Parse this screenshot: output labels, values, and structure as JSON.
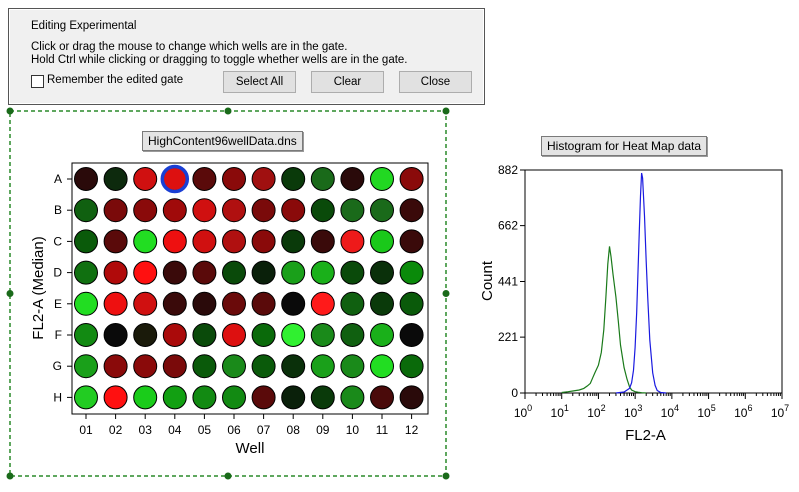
{
  "editing_panel": {
    "title": "Editing Experimental",
    "instruction_1": "Click or drag the mouse to change which wells are in the gate.",
    "instruction_2": "Hold Ctrl while clicking or dragging to toggle whether wells are in the gate.",
    "remember_label": "Remember the edited gate",
    "remember_checked": false,
    "select_all_label": "Select All",
    "clear_label": "Clear",
    "close_label": "Close"
  },
  "heatmap": {
    "title": "HighContent96wellData.dns",
    "row_labels": [
      "A",
      "B",
      "C",
      "D",
      "E",
      "F",
      "G",
      "H"
    ],
    "col_labels": [
      "01",
      "02",
      "03",
      "04",
      "05",
      "06",
      "07",
      "08",
      "09",
      "10",
      "11",
      "12"
    ],
    "xlabel": "Well",
    "ylabel": "FL2-A (Median)",
    "selected_well": "A04",
    "selection_color": "#1a3fd4",
    "well_colors": [
      [
        "#2a0a0a",
        "#0d2a0d",
        "#d01010",
        "#dd1010",
        "#5a0a0a",
        "#8a0a0a",
        "#a01010",
        "#0a3a0a",
        "#1a6a1a",
        "#2a0a0a",
        "#22d822",
        "#8a0a0a"
      ],
      [
        "#106010",
        "#7a0a0a",
        "#8a0a0a",
        "#a00a0a",
        "#d01010",
        "#b01010",
        "#7a0a0a",
        "#8a0a0a",
        "#0a4a0a",
        "#1a6a1a",
        "#1a6a1a",
        "#3a0a0a"
      ],
      [
        "#0a5a0a",
        "#5a0a0a",
        "#22dd22",
        "#ee1010",
        "#d01010",
        "#b01010",
        "#8a0a0a",
        "#0a3a0a",
        "#3a0a0a",
        "#ee1a1a",
        "#1ac81a",
        "#3a0a0a"
      ],
      [
        "#107010",
        "#b00a0a",
        "#ff1010",
        "#3a0a0a",
        "#5a0a0a",
        "#0a4a0a",
        "#0a200a",
        "#1aa01a",
        "#1ab01a",
        "#0a4a0a",
        "#0a300a",
        "#0a8a0a"
      ],
      [
        "#22dd22",
        "#ee1010",
        "#d01010",
        "#3a0a0a",
        "#2a0a0a",
        "#6a0a0a",
        "#5a0a0a",
        "#0a0a0a",
        "#ff1a1a",
        "#106010",
        "#0a3a0a",
        "#0a5a0a"
      ],
      [
        "#128a12",
        "#0a0a0a",
        "#1a1a0a",
        "#aa0a0a",
        "#0a4a0a",
        "#dd1010",
        "#0a6a0a",
        "#30f030",
        "#1a8a1a",
        "#106010",
        "#1ab01a",
        "#0a0a0a"
      ],
      [
        "#1aa01a",
        "#8a0a0a",
        "#8a0a0a",
        "#7a0a0a",
        "#0a5a0a",
        "#1a8a1a",
        "#0a5a0a",
        "#0a300a",
        "#1aa01a",
        "#1a8a1a",
        "#22dd22",
        "#0a6a0a"
      ],
      [
        "#22cc22",
        "#ff1010",
        "#1acc1a",
        "#12a012",
        "#128a12",
        "#128a12",
        "#5a0a0a",
        "#0a200a",
        "#0a3a0a",
        "#1a8a1a",
        "#4a0a0a",
        "#2a0a0a"
      ]
    ]
  },
  "chart_data": {
    "type": "line",
    "title": "Histogram for Heat Map data",
    "xlabel": "FL2-A",
    "ylabel": "Count",
    "x_scale": "log",
    "xlim": [
      1,
      10000000
    ],
    "ylim": [
      0,
      882
    ],
    "x_tick_labels": [
      "10^0",
      "10^1",
      "10^2",
      "10^3",
      "10^4",
      "10^5",
      "10^6",
      "10^7"
    ],
    "y_tick_labels": [
      "0",
      "221",
      "441",
      "662",
      "882"
    ],
    "series": [
      {
        "color": "#1a7a1a",
        "x": [
          10,
          15,
          20,
          30,
          40,
          50,
          60,
          70,
          80,
          100,
          120,
          140,
          160,
          180,
          200,
          220,
          250,
          300,
          350,
          400,
          500,
          600,
          700,
          800,
          1000,
          1200,
          1500,
          2000
        ],
        "y": [
          2,
          5,
          8,
          12,
          18,
          28,
          38,
          60,
          80,
          110,
          160,
          250,
          380,
          510,
          580,
          540,
          470,
          380,
          280,
          190,
          100,
          55,
          25,
          12,
          5,
          3,
          1,
          0
        ]
      },
      {
        "color": "#1a1ae0",
        "x": [
          300,
          500,
          700,
          800,
          900,
          1000,
          1100,
          1200,
          1300,
          1400,
          1500,
          1600,
          1800,
          2000,
          2200,
          2500,
          3000,
          3500,
          4000,
          5000,
          7000
        ],
        "y": [
          0,
          4,
          18,
          40,
          90,
          180,
          320,
          480,
          640,
          780,
          870,
          850,
          700,
          520,
          380,
          210,
          80,
          30,
          10,
          2,
          0
        ]
      }
    ]
  }
}
